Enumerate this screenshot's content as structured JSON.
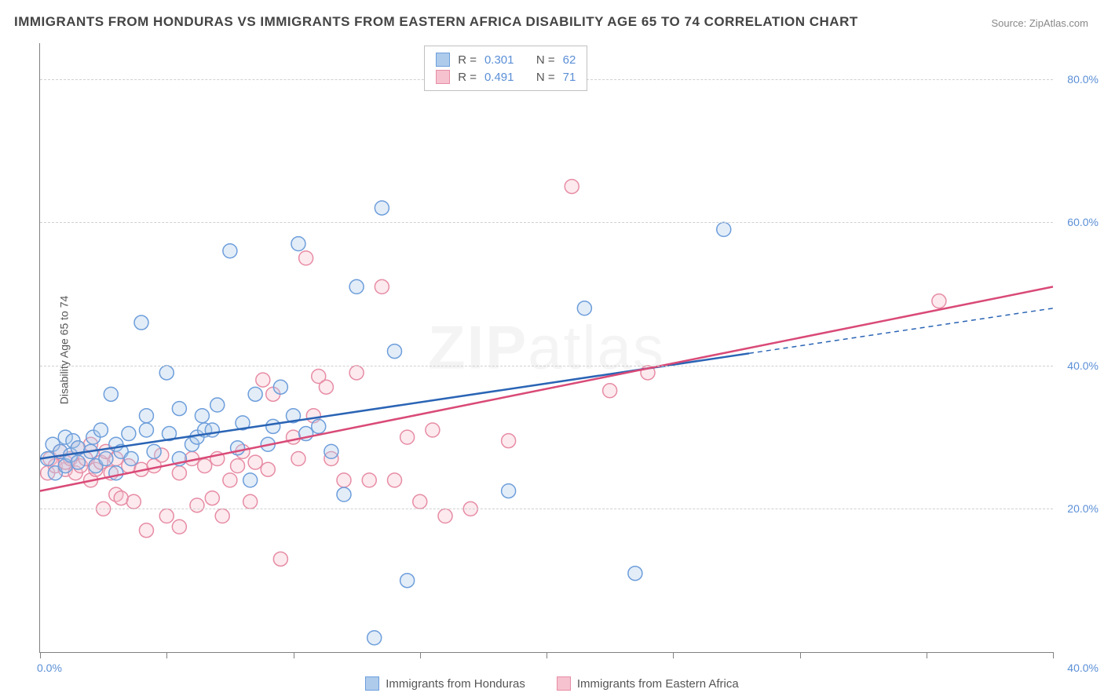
{
  "title": "IMMIGRANTS FROM HONDURAS VS IMMIGRANTS FROM EASTERN AFRICA DISABILITY AGE 65 TO 74 CORRELATION CHART",
  "source_prefix": "Source: ",
  "source_name": "ZipAtlas.com",
  "y_axis_label": "Disability Age 65 to 74",
  "watermark": "ZIP",
  "watermark_suffix": "atlas",
  "chart": {
    "type": "scatter",
    "xlim": [
      0,
      40
    ],
    "ylim": [
      0,
      85
    ],
    "x_ticks": [
      0,
      5,
      10,
      15,
      20,
      25,
      30,
      35,
      40
    ],
    "x_tick_labels": {
      "0": "0.0%",
      "40": "40.0%"
    },
    "y_gridlines": [
      20,
      40,
      60,
      80
    ],
    "y_tick_labels": {
      "20": "20.0%",
      "40": "40.0%",
      "60": "60.0%",
      "80": "80.0%"
    },
    "background_color": "#ffffff",
    "grid_color": "#d0d0d0",
    "axis_color": "#808080",
    "tick_label_color": "#5b8fd6",
    "marker_radius": 9,
    "marker_stroke_width": 1.5,
    "series": [
      {
        "id": "honduras",
        "label": "Immigrants from Honduras",
        "color_fill": "#aecbec",
        "color_stroke": "#6d9edb",
        "R": "0.301",
        "N": "62",
        "trend": {
          "x1": 0,
          "y1": 27,
          "x2": 40,
          "y2": 48,
          "color": "#2a64b5",
          "width": 2.5,
          "dash_after_x": 28
        },
        "points": [
          [
            0.3,
            27
          ],
          [
            0.5,
            29
          ],
          [
            0.6,
            25
          ],
          [
            0.8,
            28
          ],
          [
            1.0,
            26
          ],
          [
            1.0,
            30
          ],
          [
            1.2,
            27.5
          ],
          [
            1.3,
            29.5
          ],
          [
            1.5,
            26.5
          ],
          [
            1.5,
            28.5
          ],
          [
            2.0,
            28
          ],
          [
            2.1,
            30
          ],
          [
            2.2,
            26
          ],
          [
            2.4,
            31
          ],
          [
            2.6,
            27
          ],
          [
            2.8,
            36
          ],
          [
            3.0,
            25
          ],
          [
            3.0,
            29
          ],
          [
            3.2,
            28
          ],
          [
            3.5,
            30.5
          ],
          [
            3.6,
            27
          ],
          [
            4.0,
            46
          ],
          [
            4.2,
            31
          ],
          [
            4.2,
            33
          ],
          [
            4.5,
            28
          ],
          [
            5.0,
            39
          ],
          [
            5.1,
            30.5
          ],
          [
            5.5,
            34
          ],
          [
            5.5,
            27
          ],
          [
            6.0,
            29
          ],
          [
            6.2,
            30
          ],
          [
            6.4,
            33
          ],
          [
            6.5,
            31
          ],
          [
            6.8,
            31
          ],
          [
            7.0,
            34.5
          ],
          [
            7.5,
            56
          ],
          [
            7.8,
            28.5
          ],
          [
            8.0,
            32
          ],
          [
            8.3,
            24
          ],
          [
            8.5,
            36
          ],
          [
            9.0,
            29
          ],
          [
            9.2,
            31.5
          ],
          [
            9.5,
            37
          ],
          [
            10.0,
            33
          ],
          [
            10.2,
            57
          ],
          [
            10.5,
            30.5
          ],
          [
            11.0,
            31.5
          ],
          [
            11.5,
            28
          ],
          [
            12.0,
            22
          ],
          [
            12.5,
            51
          ],
          [
            13.2,
            2
          ],
          [
            13.5,
            62
          ],
          [
            14.0,
            42
          ],
          [
            14.5,
            10
          ],
          [
            18.5,
            22.5
          ],
          [
            21.5,
            48
          ],
          [
            23.5,
            11
          ],
          [
            27.0,
            59
          ]
        ]
      },
      {
        "id": "eastern_africa",
        "label": "Immigrants from Eastern Africa",
        "color_fill": "#f6c2cf",
        "color_stroke": "#e78ca5",
        "R": "0.491",
        "N": "71",
        "trend": {
          "x1": 0,
          "y1": 22.5,
          "x2": 40,
          "y2": 51,
          "color": "#d94a77",
          "width": 2.5,
          "dash_after_x": 40
        },
        "points": [
          [
            0.3,
            25
          ],
          [
            0.4,
            27
          ],
          [
            0.6,
            26
          ],
          [
            0.8,
            28
          ],
          [
            1.0,
            25.5
          ],
          [
            1.0,
            26.5
          ],
          [
            1.2,
            27
          ],
          [
            1.4,
            25
          ],
          [
            1.5,
            28.5
          ],
          [
            1.6,
            26
          ],
          [
            1.8,
            27
          ],
          [
            2.0,
            24
          ],
          [
            2.0,
            29
          ],
          [
            2.2,
            25.5
          ],
          [
            2.4,
            26.5
          ],
          [
            2.5,
            20
          ],
          [
            2.6,
            28
          ],
          [
            2.8,
            25
          ],
          [
            3.0,
            27
          ],
          [
            3.0,
            22
          ],
          [
            3.2,
            21.5
          ],
          [
            3.5,
            26
          ],
          [
            3.7,
            21
          ],
          [
            4.0,
            25.5
          ],
          [
            4.2,
            17
          ],
          [
            4.5,
            26
          ],
          [
            4.8,
            27.5
          ],
          [
            5.0,
            19
          ],
          [
            5.5,
            25
          ],
          [
            5.5,
            17.5
          ],
          [
            6.0,
            27
          ],
          [
            6.2,
            20.5
          ],
          [
            6.5,
            26
          ],
          [
            6.8,
            21.5
          ],
          [
            7.0,
            27
          ],
          [
            7.2,
            19
          ],
          [
            7.5,
            24
          ],
          [
            7.8,
            26
          ],
          [
            8.0,
            28
          ],
          [
            8.3,
            21
          ],
          [
            8.5,
            26.5
          ],
          [
            8.8,
            38
          ],
          [
            9.0,
            25.5
          ],
          [
            9.2,
            36
          ],
          [
            9.5,
            13
          ],
          [
            10.0,
            30
          ],
          [
            10.2,
            27
          ],
          [
            10.5,
            55
          ],
          [
            10.8,
            33
          ],
          [
            11.0,
            38.5
          ],
          [
            11.3,
            37
          ],
          [
            11.5,
            27
          ],
          [
            12.0,
            24
          ],
          [
            12.5,
            39
          ],
          [
            13.0,
            24
          ],
          [
            13.5,
            51
          ],
          [
            14.0,
            24
          ],
          [
            14.5,
            30
          ],
          [
            15.0,
            21
          ],
          [
            15.5,
            31
          ],
          [
            16.0,
            19
          ],
          [
            17.0,
            20
          ],
          [
            18.5,
            29.5
          ],
          [
            21.0,
            65
          ],
          [
            22.5,
            36.5
          ],
          [
            24.0,
            39
          ],
          [
            35.5,
            49
          ]
        ]
      }
    ]
  },
  "top_legend": {
    "R_label": "R =",
    "N_label": "N ="
  }
}
